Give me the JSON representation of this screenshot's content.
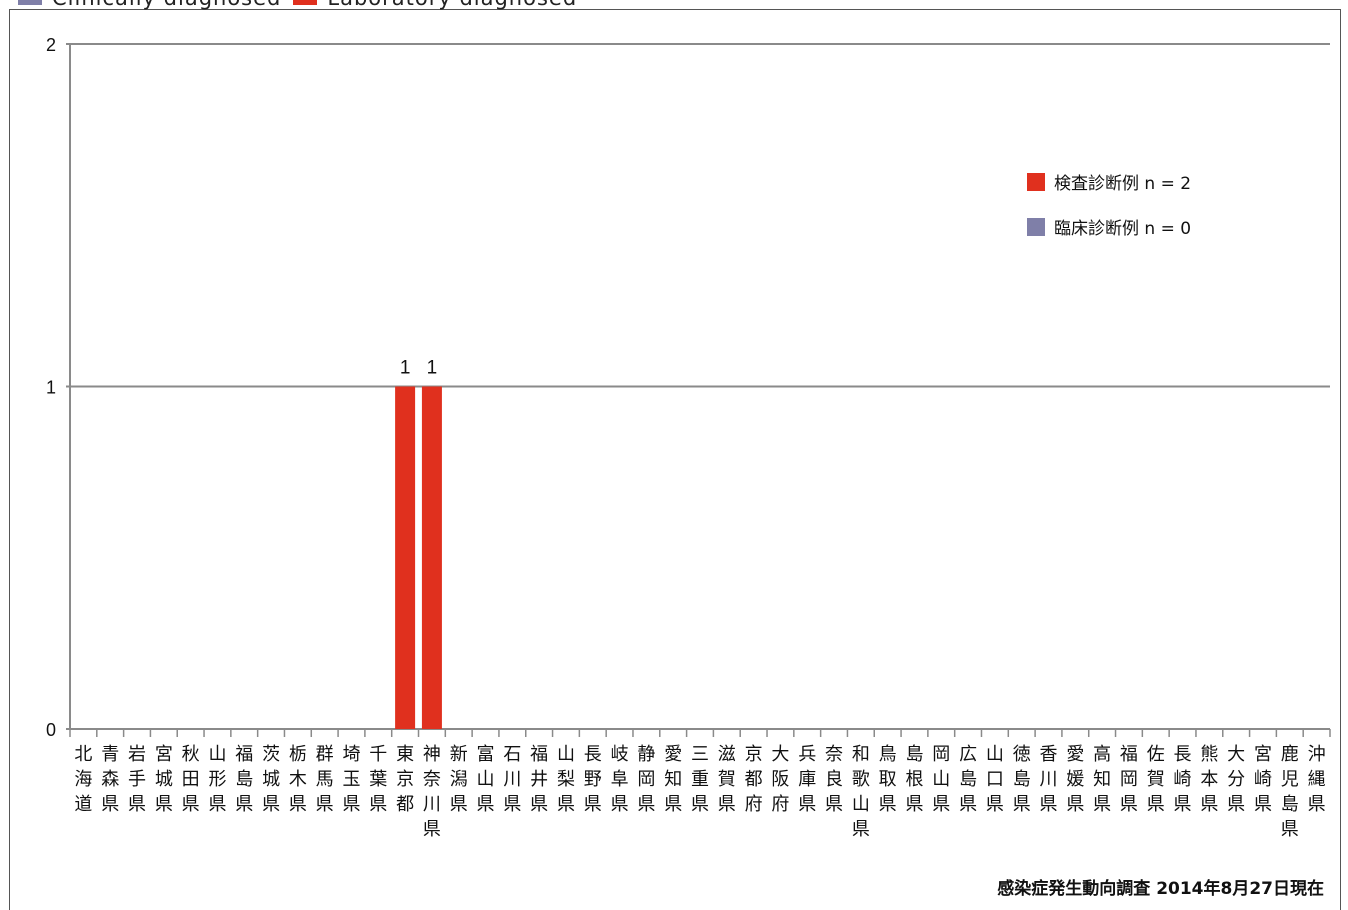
{
  "top_legend": [
    {
      "label": "Clinically diagnosed",
      "color": "#7f7fa8"
    },
    {
      "label": "Laboratory diagnosed",
      "color": "#e0301e"
    }
  ],
  "footer": "感染症発生動向調査 2014年8月27日現在",
  "chart_data": {
    "type": "bar",
    "ylim": [
      0,
      2
    ],
    "yticks": [
      0,
      1,
      2
    ],
    "grid": true,
    "legend_position": "top-right",
    "categories": [
      "北海道",
      "青森県",
      "岩手県",
      "宮城県",
      "秋田県",
      "山形県",
      "福島県",
      "茨城県",
      "栃木県",
      "群馬県",
      "埼玉県",
      "千葉県",
      "東京都",
      "神奈川県",
      "新潟県",
      "富山県",
      "石川県",
      "福井県",
      "山梨県",
      "長野県",
      "岐阜県",
      "静岡県",
      "愛知県",
      "三重県",
      "滋賀県",
      "京都府",
      "大阪府",
      "兵庫県",
      "奈良県",
      "和歌山県",
      "鳥取県",
      "島根県",
      "岡山県",
      "広島県",
      "山口県",
      "徳島県",
      "香川県",
      "愛媛県",
      "高知県",
      "福岡県",
      "佐賀県",
      "長崎県",
      "熊本県",
      "大分県",
      "宮崎県",
      "鹿児島県",
      "沖縄県"
    ],
    "series": [
      {
        "name": "検査診断例 n = 2",
        "color": "#e0301e",
        "values": [
          0,
          0,
          0,
          0,
          0,
          0,
          0,
          0,
          0,
          0,
          0,
          0,
          1,
          1,
          0,
          0,
          0,
          0,
          0,
          0,
          0,
          0,
          0,
          0,
          0,
          0,
          0,
          0,
          0,
          0,
          0,
          0,
          0,
          0,
          0,
          0,
          0,
          0,
          0,
          0,
          0,
          0,
          0,
          0,
          0,
          0,
          0
        ]
      },
      {
        "name": "臨床診断例 n = 0",
        "color": "#7f7fa8",
        "values": [
          0,
          0,
          0,
          0,
          0,
          0,
          0,
          0,
          0,
          0,
          0,
          0,
          0,
          0,
          0,
          0,
          0,
          0,
          0,
          0,
          0,
          0,
          0,
          0,
          0,
          0,
          0,
          0,
          0,
          0,
          0,
          0,
          0,
          0,
          0,
          0,
          0,
          0,
          0,
          0,
          0,
          0,
          0,
          0,
          0,
          0,
          0
        ]
      }
    ],
    "data_labels": [
      {
        "category": "東京都",
        "text": "1"
      },
      {
        "category": "神奈川県",
        "text": "1"
      }
    ]
  }
}
